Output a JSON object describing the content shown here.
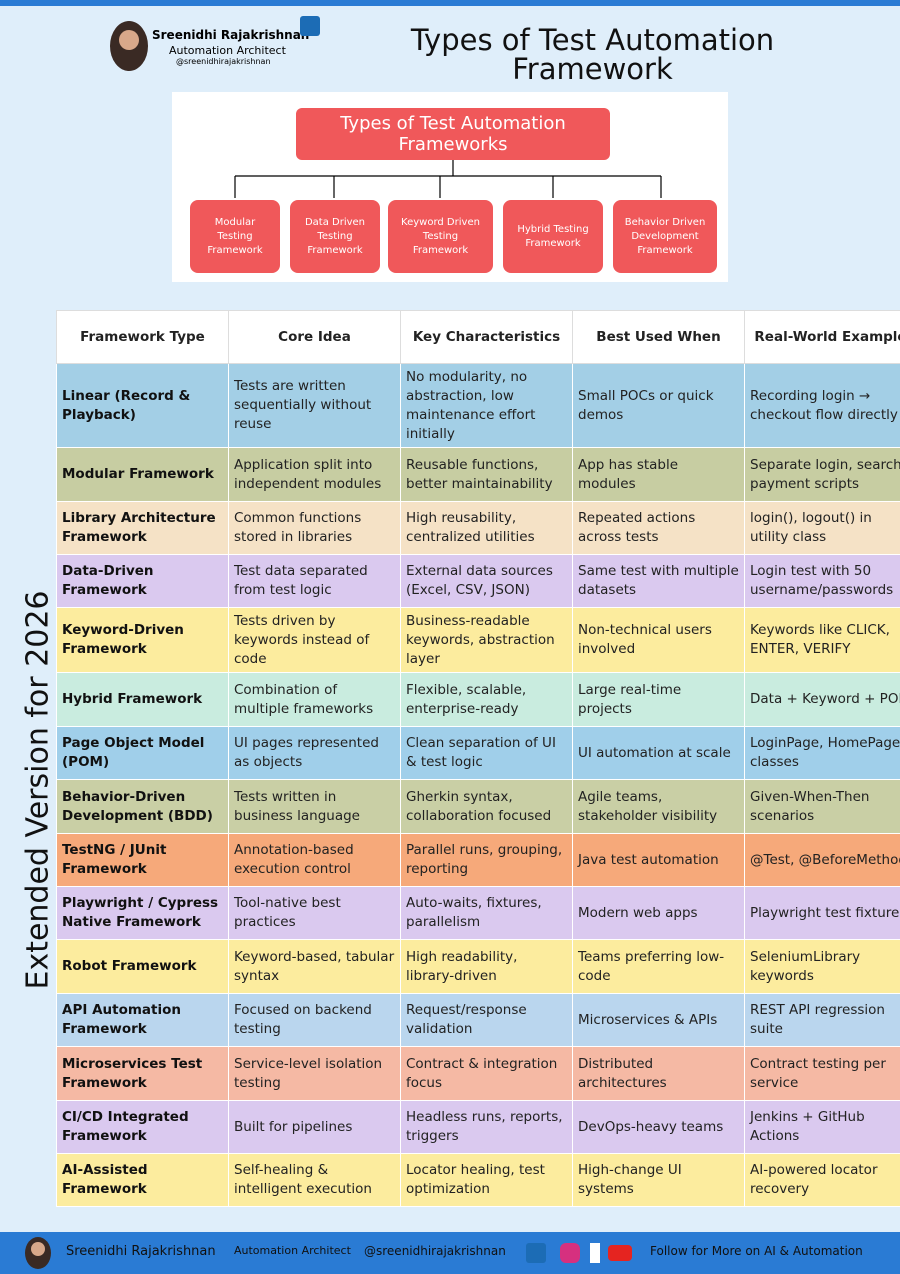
{
  "header": {
    "name": "Sreenidhi Rajakrishnan",
    "role": "Automation Architect",
    "handle": "@sreenidhirajakrishnan",
    "title": "Types of Test Automation Framework"
  },
  "diagram": {
    "root": "Types of Test Automation Frameworks",
    "nodes": [
      "Modular Testing Framework",
      "Data Driven Testing Framework",
      "Keyword Driven Testing Framework",
      "Hybrid Testing Framework",
      "Behavior Driven Development Framework"
    ]
  },
  "side_label": "Extended Version for 2026",
  "table": {
    "columns": [
      "Framework Type",
      "Core Idea",
      "Key Characteristics",
      "Best Used When",
      "Real-World Example"
    ],
    "rows": [
      [
        "Linear (Record & Playback)",
        "Tests are written sequentially without reuse",
        "No modularity, no abstraction, low maintenance effort initially",
        "Small POCs or quick demos",
        "Recording login → checkout flow directly"
      ],
      [
        "Modular Framework",
        "Application split into independent modules",
        "Reusable functions, better maintainability",
        "App has stable modules",
        "Separate login, search, payment scripts"
      ],
      [
        "Library Architecture Framework",
        "Common functions stored in libraries",
        "High reusability, centralized utilities",
        "Repeated actions across tests",
        "login(), logout() in utility class"
      ],
      [
        "Data-Driven Framework",
        "Test data separated from test logic",
        "External data sources (Excel, CSV, JSON)",
        "Same test with multiple datasets",
        "Login test with 50 username/passwords"
      ],
      [
        "Keyword-Driven Framework",
        "Tests driven by keywords instead of code",
        "Business-readable keywords, abstraction layer",
        "Non-technical users involved",
        "Keywords like CLICK, ENTER, VERIFY"
      ],
      [
        "Hybrid Framework",
        "Combination of multiple frameworks",
        "Flexible, scalable, enterprise-ready",
        "Large real-time projects",
        "Data + Keyword + POM"
      ],
      [
        "Page Object Model (POM)",
        "UI pages represented as objects",
        "Clean separation of UI & test logic",
        "UI automation at scale",
        "LoginPage, HomePage classes"
      ],
      [
        "Behavior-Driven Development (BDD)",
        "Tests written in business language",
        "Gherkin syntax, collaboration focused",
        "Agile teams, stakeholder visibility",
        "Given-When-Then scenarios"
      ],
      [
        "TestNG / JUnit Framework",
        "Annotation-based execution control",
        "Parallel runs, grouping, reporting",
        "Java test automation",
        "@Test, @BeforeMethod"
      ],
      [
        "Playwright / Cypress Native Framework",
        "Tool-native best practices",
        "Auto-waits, fixtures, parallelism",
        "Modern web apps",
        "Playwright test fixtures"
      ],
      [
        "Robot Framework",
        "Keyword-based, tabular syntax",
        "High readability, library-driven",
        "Teams preferring low-code",
        "SeleniumLibrary keywords"
      ],
      [
        "API Automation Framework",
        "Focused on backend testing",
        "Request/response validation",
        "Microservices & APIs",
        "REST API regression suite"
      ],
      [
        "Microservices Test Framework",
        "Service-level isolation testing",
        "Contract & integration focus",
        "Distributed architectures",
        "Contract testing per service"
      ],
      [
        "CI/CD Integrated Framework",
        "Built for pipelines",
        "Headless runs, reports, triggers",
        "DevOps-heavy teams",
        "Jenkins + GitHub Actions"
      ],
      [
        "AI-Assisted Framework",
        "Self-healing & intelligent execution",
        "Locator healing, test optimization",
        "High-change UI systems",
        "AI-powered locator recovery"
      ]
    ],
    "row_colors": [
      "#a3cfe6",
      "#c7cda2",
      "#f5e2c6",
      "#dac9ef",
      "#fcec9e",
      "#c9ecdf",
      "#a0cfea",
      "#c9cfa5",
      "#f6a97a",
      "#dac9ef",
      "#fcec9e",
      "#bad6ee",
      "#f5b9a4",
      "#dac9ef",
      "#fcec9e"
    ]
  },
  "footer": {
    "name": "Sreenidhi Rajakrishnan",
    "role": "Automation Architect",
    "handle": "@sreenidhirajakrishnan",
    "cta": "Follow for More on AI & Automation"
  }
}
